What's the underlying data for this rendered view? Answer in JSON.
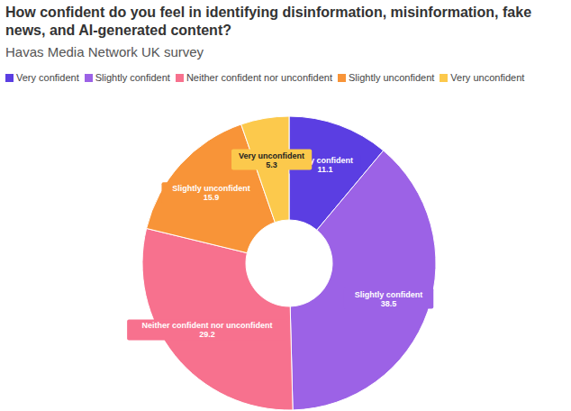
{
  "chart_data": {
    "type": "pie",
    "title": "How confident do you feel in identifying disinformation, misinformation, fake news, and AI-generated content?",
    "subtitle": "Havas Media Network UK survey",
    "categories": [
      "Very confident",
      "Slightly confident",
      "Neither confident nor unconfident",
      "Slightly unconfident",
      "Very unconfident"
    ],
    "values": [
      11.1,
      38.5,
      29.2,
      15.9,
      5.3
    ],
    "colors": [
      "#5b3ee2",
      "#9c62e6",
      "#f7718e",
      "#f89438",
      "#fcc94c"
    ],
    "legend": "top",
    "data_labels": true
  }
}
